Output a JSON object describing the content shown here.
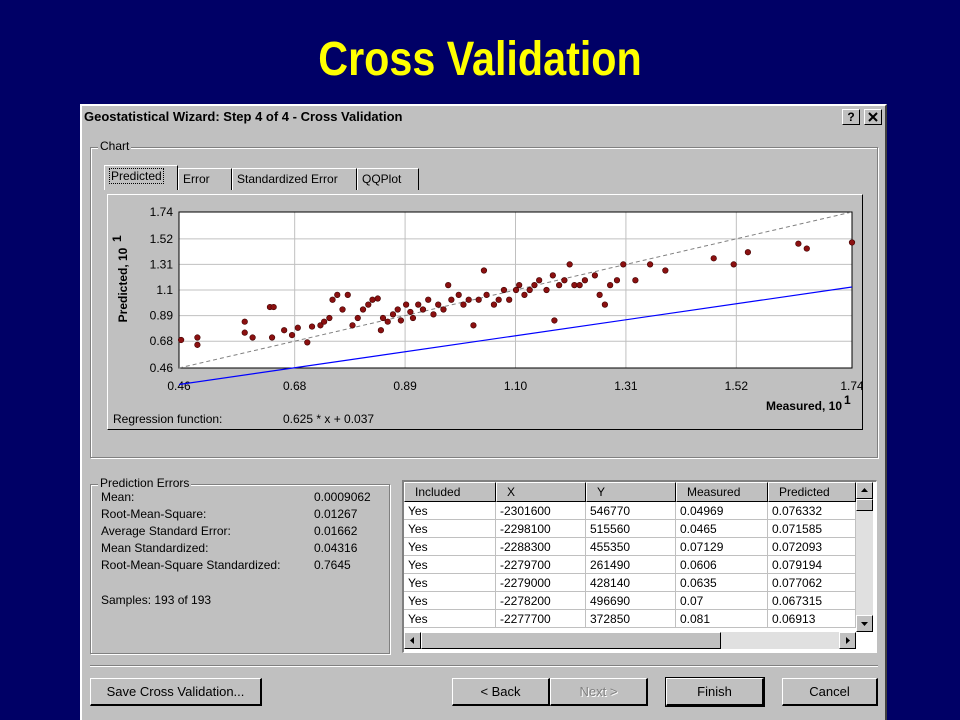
{
  "page_title": "Cross Validation",
  "window": {
    "title": "Geostatistical Wizard: Step 4 of 4 - Cross Validation",
    "help": "?"
  },
  "chart_group": "Chart",
  "tabs": [
    "Predicted",
    "Error",
    "Standardized Error",
    "QQPlot"
  ],
  "chart_data": {
    "type": "scatter",
    "x_label": "Measured, 10",
    "x_label_exponent": "1",
    "y_label": "Predicted, 10",
    "y_label_exponent": "1",
    "xlim": [
      0.46,
      1.74
    ],
    "ylim": [
      0.46,
      1.74
    ],
    "xticks": [
      0.46,
      0.68,
      0.89,
      {
        "value": 1.1,
        "label": "1.10"
      },
      1.31,
      1.52,
      1.74
    ],
    "yticks": [
      1.74,
      1.52,
      1.31,
      1.1,
      0.89,
      0.68,
      0.46
    ],
    "grid": true,
    "color": "#8b1010",
    "x": [
      0.464,
      0.495,
      0.495,
      0.585,
      0.585,
      0.6,
      0.633,
      0.64,
      0.637,
      0.66,
      0.675,
      0.686,
      0.704,
      0.713,
      0.729,
      0.736,
      0.746,
      0.752,
      0.761,
      0.771,
      0.781,
      0.79,
      0.8,
      0.81,
      0.82,
      0.828,
      0.838,
      0.844,
      0.848,
      0.857,
      0.867,
      0.876,
      0.882,
      0.892,
      0.9,
      0.905,
      0.915,
      0.924,
      0.934,
      0.944,
      0.953,
      0.963,
      0.972,
      0.978,
      0.992,
      1.001,
      1.011,
      1.02,
      1.03,
      1.04,
      1.045,
      1.059,
      1.068,
      1.078,
      1.088,
      1.101,
      1.107,
      1.117,
      1.127,
      1.136,
      1.145,
      1.159,
      1.171,
      1.174,
      1.183,
      1.193,
      1.203,
      1.212,
      1.222,
      1.232,
      1.251,
      1.26,
      1.27,
      1.28,
      1.293,
      1.305,
      1.328,
      1.356,
      1.385,
      1.477,
      1.515,
      1.542,
      1.638,
      1.654,
      1.74
    ],
    "values": [
      0.69,
      0.71,
      0.65,
      0.84,
      0.75,
      0.71,
      0.96,
      0.96,
      0.71,
      0.77,
      0.73,
      0.79,
      0.67,
      0.8,
      0.81,
      0.84,
      0.87,
      1.02,
      1.06,
      0.94,
      1.06,
      0.81,
      0.87,
      0.94,
      0.98,
      1.02,
      1.03,
      0.77,
      0.87,
      0.84,
      0.9,
      0.94,
      0.85,
      0.98,
      0.92,
      0.87,
      0.98,
      0.94,
      1.02,
      0.9,
      0.98,
      0.94,
      1.14,
      1.02,
      1.06,
      0.98,
      1.02,
      0.81,
      1.02,
      1.26,
      1.06,
      0.98,
      1.02,
      1.1,
      1.02,
      1.1,
      1.14,
      1.06,
      1.1,
      1.14,
      1.18,
      1.1,
      1.22,
      0.85,
      1.14,
      1.18,
      1.31,
      1.14,
      1.14,
      1.18,
      1.22,
      1.06,
      0.98,
      1.14,
      1.18,
      1.31,
      1.18,
      1.31,
      1.26,
      1.36,
      1.31,
      1.41,
      1.48,
      1.44,
      1.49
    ],
    "regression": {
      "label": "Regression function:",
      "formula": "0.625 * x + 0.037",
      "slope": 0.625,
      "intercept": 0.037,
      "color": "#0000ff"
    }
  },
  "prediction_errors": {
    "title": "Prediction Errors",
    "rows": [
      [
        "Mean:",
        "0.0009062"
      ],
      [
        "Root-Mean-Square:",
        "0.01267"
      ],
      [
        "Average Standard Error:",
        "0.01662"
      ],
      [
        "Mean Standardized:",
        "0.04316"
      ],
      [
        "Root-Mean-Square Standardized:",
        "0.7645"
      ]
    ],
    "samples": "Samples: 193 of 193"
  },
  "table": {
    "columns": [
      "Included",
      "X",
      "Y",
      "Measured",
      "Predicted"
    ],
    "rows": [
      [
        "Yes",
        "-2301600",
        "546770",
        "0.04969",
        "0.076332"
      ],
      [
        "Yes",
        "-2298100",
        "515560",
        "0.0465",
        "0.071585"
      ],
      [
        "Yes",
        "-2288300",
        "455350",
        "0.07129",
        "0.072093"
      ],
      [
        "Yes",
        "-2279700",
        "261490",
        "0.0606",
        "0.079194"
      ],
      [
        "Yes",
        "-2279000",
        "428140",
        "0.0635",
        "0.077062"
      ],
      [
        "Yes",
        "-2278200",
        "496690",
        "0.07",
        "0.067315"
      ],
      [
        "Yes",
        "-2277700",
        "372850",
        "0.081",
        "0.06913"
      ]
    ]
  },
  "buttons": {
    "save": "Save Cross Validation...",
    "back": "< Back",
    "next": "Next >",
    "finish": "Finish",
    "cancel": "Cancel"
  }
}
